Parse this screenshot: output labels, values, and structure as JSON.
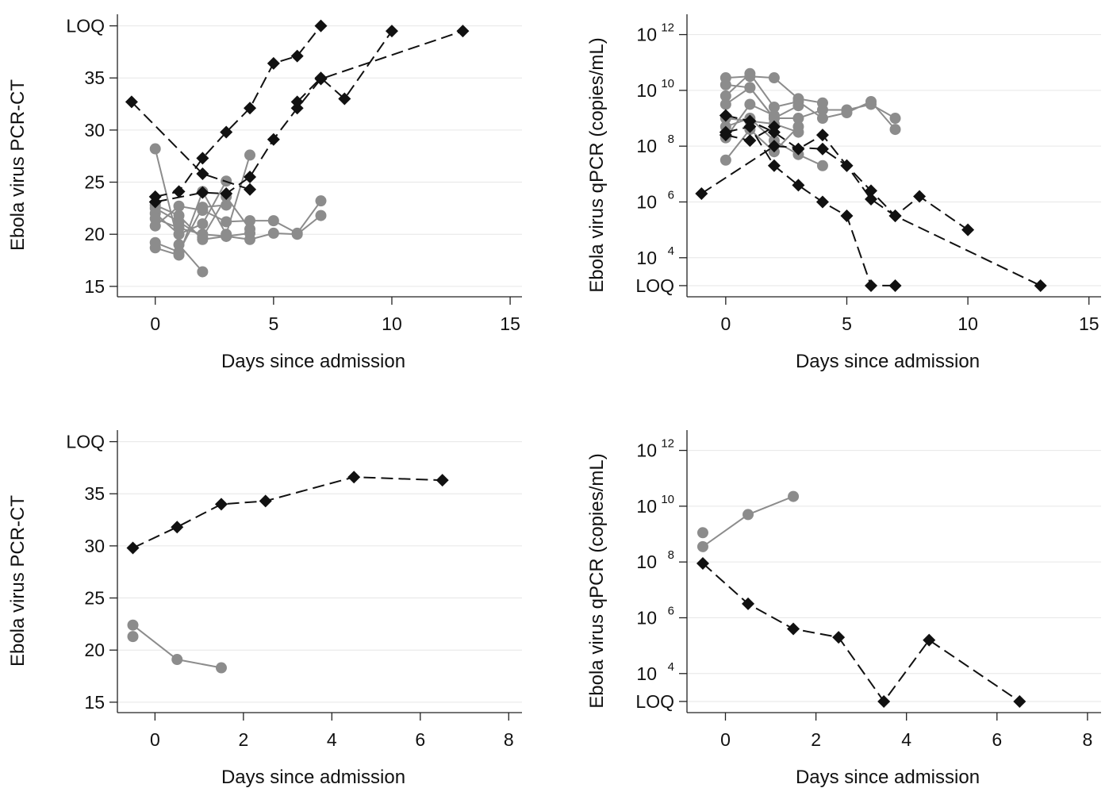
{
  "chart_data": [
    {
      "type": "line",
      "xlabel": "Days since admission",
      "ylabel": "Ebola virus PCR-CT",
      "xlim": [
        -1.6,
        15.5
      ],
      "xticks": [
        0,
        5,
        10,
        15
      ],
      "ylim": [
        14,
        40.5
      ],
      "yticks": [
        {
          "v": 15,
          "label": "15"
        },
        {
          "v": 20,
          "label": "20"
        },
        {
          "v": 25,
          "label": "25"
        },
        {
          "v": 30,
          "label": "30"
        },
        {
          "v": 35,
          "label": "35"
        },
        {
          "v": 40,
          "label": "LOQ"
        }
      ],
      "grid": true,
      "series": [
        {
          "style": "gray",
          "x": [
            0,
            1,
            2
          ],
          "y": [
            28.2,
            19.0,
            16.4
          ]
        },
        {
          "style": "gray",
          "x": [
            0,
            1,
            2,
            3,
            4
          ],
          "y": [
            22.8,
            21.8,
            19.5,
            19.8,
            20.1
          ]
        },
        {
          "style": "gray",
          "x": [
            0,
            1,
            2,
            3
          ],
          "y": [
            22.0,
            20.0,
            21.0,
            25.1
          ]
        },
        {
          "style": "gray",
          "x": [
            0,
            1,
            2,
            3,
            4,
            5,
            6,
            7
          ],
          "y": [
            21.5,
            20.6,
            20.0,
            19.8,
            19.5,
            20.1,
            20.0,
            21.8
          ]
        },
        {
          "style": "gray",
          "x": [
            0,
            1,
            2,
            3,
            4,
            5,
            6,
            7
          ],
          "y": [
            20.8,
            22.7,
            22.3,
            21.2,
            21.3,
            21.3,
            20.1,
            23.2
          ]
        },
        {
          "style": "gray",
          "x": [
            0,
            1,
            2,
            3
          ],
          "y": [
            19.2,
            18.3,
            22.6,
            22.8
          ]
        },
        {
          "style": "gray",
          "x": [
            0,
            1,
            2,
            3,
            4
          ],
          "y": [
            18.7,
            18.0,
            24.1,
            20.0,
            27.6
          ]
        },
        {
          "style": "gray",
          "x": [
            0,
            1,
            2,
            3,
            4
          ],
          "y": [
            22.5,
            21.2,
            19.7,
            23.6,
            20.5
          ]
        },
        {
          "style": "black",
          "x": [
            -1,
            2,
            4
          ],
          "y": [
            32.7,
            25.8,
            24.3
          ]
        },
        {
          "style": "black",
          "x": [
            0,
            1,
            2,
            3,
            4,
            5,
            6,
            7
          ],
          "y": [
            23.6,
            24.1,
            27.3,
            29.8,
            32.1,
            36.4,
            37.1,
            40.0
          ]
        },
        {
          "style": "black",
          "x": [
            0,
            2,
            3,
            4,
            5,
            6,
            7,
            13
          ],
          "y": [
            23.1,
            24.0,
            23.9,
            25.5,
            29.1,
            32.1,
            34.9,
            39.5
          ]
        },
        {
          "style": "black",
          "x": [
            6,
            7,
            8,
            10
          ],
          "y": [
            32.7,
            35.0,
            33.0,
            39.5
          ]
        }
      ]
    },
    {
      "type": "line",
      "scale": "log",
      "xlabel": "Days since admission",
      "ylabel": "Ebola virus qPCR (copies/mL)",
      "xlim": [
        -1.6,
        15.5
      ],
      "xticks": [
        0,
        5,
        10,
        15
      ],
      "ylim": [
        2.6,
        12.5
      ],
      "yticks": [
        {
          "v": 3,
          "base": "LOQ"
        },
        {
          "v": 4,
          "base": "10",
          "exp": "4"
        },
        {
          "v": 6,
          "base": "10",
          "exp": "6"
        },
        {
          "v": 8,
          "base": "10",
          "exp": "8"
        },
        {
          "v": 10,
          "base": "10",
          "exp": "10"
        },
        {
          "v": 12,
          "base": "10",
          "exp": "12"
        }
      ],
      "grid": true,
      "series": [
        {
          "style": "gray",
          "x": [
            0,
            1,
            2,
            3,
            4
          ],
          "y": [
            10.45,
            10.5,
            10.45,
            9.7,
            9.55
          ]
        },
        {
          "style": "gray",
          "x": [
            0,
            1,
            2,
            3,
            4,
            5,
            6,
            7
          ],
          "y": [
            10.2,
            10.1,
            9.0,
            9.0,
            9.3,
            9.3,
            9.5,
            9.0
          ]
        },
        {
          "style": "gray",
          "x": [
            0,
            1,
            2,
            3,
            4,
            5,
            6,
            7
          ],
          "y": [
            9.8,
            10.6,
            9.4,
            9.6,
            9.0,
            9.2,
            9.6,
            8.6
          ]
        },
        {
          "style": "gray",
          "x": [
            0,
            1,
            2,
            3
          ],
          "y": [
            9.5,
            10.1,
            9.0,
            9.45
          ]
        },
        {
          "style": "gray",
          "x": [
            0,
            1,
            2,
            3
          ],
          "y": [
            9.0,
            8.9,
            8.8,
            8.5
          ]
        },
        {
          "style": "gray",
          "x": [
            0,
            1,
            2,
            3,
            4
          ],
          "y": [
            8.7,
            9.0,
            8.2,
            7.7,
            7.3
          ]
        },
        {
          "style": "gray",
          "x": [
            0,
            1,
            2,
            3
          ],
          "y": [
            7.5,
            8.6,
            7.8,
            8.7
          ]
        },
        {
          "style": "gray",
          "x": [
            0,
            1,
            2
          ],
          "y": [
            8.3,
            9.5,
            9.1
          ]
        },
        {
          "style": "black",
          "x": [
            -1,
            2,
            4,
            5,
            6,
            7,
            8,
            10
          ],
          "y": [
            6.3,
            8.0,
            7.9,
            7.3,
            6.4,
            5.5,
            6.2,
            5.0
          ]
        },
        {
          "style": "black",
          "x": [
            0,
            1,
            2,
            3,
            4,
            5,
            6,
            7
          ],
          "y": [
            8.5,
            8.7,
            7.3,
            6.6,
            6.0,
            5.5,
            3.0,
            3.0
          ]
        },
        {
          "style": "black",
          "x": [
            0,
            1,
            2,
            3,
            4,
            5,
            6,
            7,
            13
          ],
          "y": [
            9.1,
            8.9,
            8.5,
            7.9,
            8.4,
            7.3,
            6.1,
            5.5,
            3.0
          ]
        },
        {
          "style": "black",
          "x": [
            0,
            1,
            2
          ],
          "y": [
            8.4,
            8.2,
            8.7
          ]
        }
      ]
    },
    {
      "type": "line",
      "xlabel": "Days since admission",
      "ylabel": "Ebola virus PCR-CT",
      "xlim": [
        -0.85,
        8.3
      ],
      "xticks": [
        0,
        2,
        4,
        6,
        8
      ],
      "ylim": [
        14,
        40.5
      ],
      "yticks": [
        {
          "v": 15,
          "label": "15"
        },
        {
          "v": 20,
          "label": "20"
        },
        {
          "v": 25,
          "label": "25"
        },
        {
          "v": 30,
          "label": "30"
        },
        {
          "v": 35,
          "label": "35"
        },
        {
          "v": 40,
          "label": "LOQ"
        }
      ],
      "grid": true,
      "series": [
        {
          "style": "gray",
          "x": [
            -0.5,
            0.5,
            1.5
          ],
          "y": [
            22.4,
            19.1,
            18.3
          ]
        },
        {
          "style": "gray",
          "x": [
            -0.5
          ],
          "y": [
            21.3
          ]
        },
        {
          "style": "black",
          "x": [
            -0.5,
            0.5,
            1.5,
            2.5,
            4.5,
            6.5
          ],
          "y": [
            29.8,
            31.8,
            34.0,
            34.3,
            36.6,
            36.3
          ]
        }
      ]
    },
    {
      "type": "line",
      "scale": "log",
      "xlabel": "Days since admission",
      "ylabel": "Ebola virus qPCR (copies/mL)",
      "xlim": [
        -0.85,
        8.3
      ],
      "xticks": [
        0,
        2,
        4,
        6,
        8
      ],
      "ylim": [
        2.6,
        12.5
      ],
      "yticks": [
        {
          "v": 3,
          "base": "LOQ"
        },
        {
          "v": 4,
          "base": "10",
          "exp": "4"
        },
        {
          "v": 6,
          "base": "10",
          "exp": "6"
        },
        {
          "v": 8,
          "base": "10",
          "exp": "8"
        },
        {
          "v": 10,
          "base": "10",
          "exp": "10"
        },
        {
          "v": 12,
          "base": "10",
          "exp": "12"
        }
      ],
      "grid": true,
      "series": [
        {
          "style": "gray",
          "x": [
            -0.5,
            0.5,
            1.5
          ],
          "y": [
            8.55,
            9.7,
            10.35
          ]
        },
        {
          "style": "gray",
          "x": [
            -0.5
          ],
          "y": [
            9.05
          ]
        },
        {
          "style": "black",
          "x": [
            -0.5,
            0.5,
            1.5,
            2.5,
            3.5,
            4.5,
            6.5
          ],
          "y": [
            7.95,
            6.5,
            5.6,
            5.3,
            3.0,
            5.2,
            3.0
          ]
        }
      ]
    }
  ]
}
